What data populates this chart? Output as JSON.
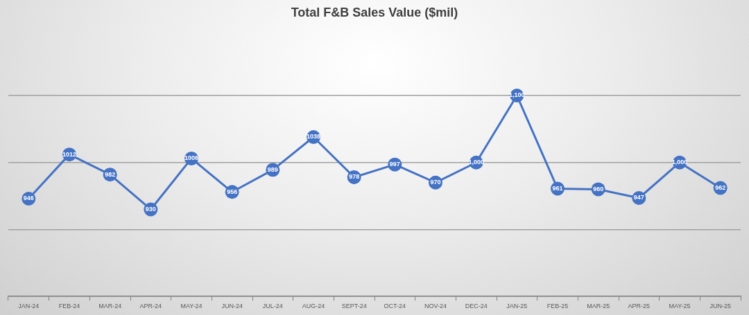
{
  "chart_data": {
    "type": "line",
    "title": "Total F&B Sales Value ($mil)",
    "categories": [
      "JAN-24",
      "FEB-24",
      "MAR-24",
      "APR-24",
      "MAY-24",
      "JUN-24",
      "JUL-24",
      "AUG-24",
      "SEPT-24",
      "OCT-24",
      "NOV-24",
      "DEC-24",
      "JAN-25",
      "FEB-25",
      "MAR-25",
      "APR-25",
      "MAY-25",
      "JUN-25"
    ],
    "series": [
      {
        "color": "#4472c4",
        "values": [
          946,
          1012,
          982,
          930,
          1006,
          956,
          989,
          1038,
          978,
          997,
          970,
          1000,
          1100,
          961,
          960,
          947,
          1000,
          962
        ],
        "value_labels": [
          "946",
          "1012",
          "982",
          "930",
          "1006",
          "956",
          "989",
          "1038",
          "978",
          "997",
          "970",
          "1,000",
          "1,100",
          "961",
          "960",
          "947",
          "1,000",
          "962"
        ]
      }
    ],
    "ylim": [
      800,
      1100
    ],
    "yticks": [
      {
        "value": 800,
        "label": null
      },
      {
        "value": 900,
        "label": null
      },
      {
        "value": 1000,
        "label": null
      },
      {
        "value": 1100,
        "label": null
      }
    ],
    "tick_labels": "x",
    "grid": "y",
    "legend": false,
    "marker": "circle",
    "line_style": "solid"
  }
}
